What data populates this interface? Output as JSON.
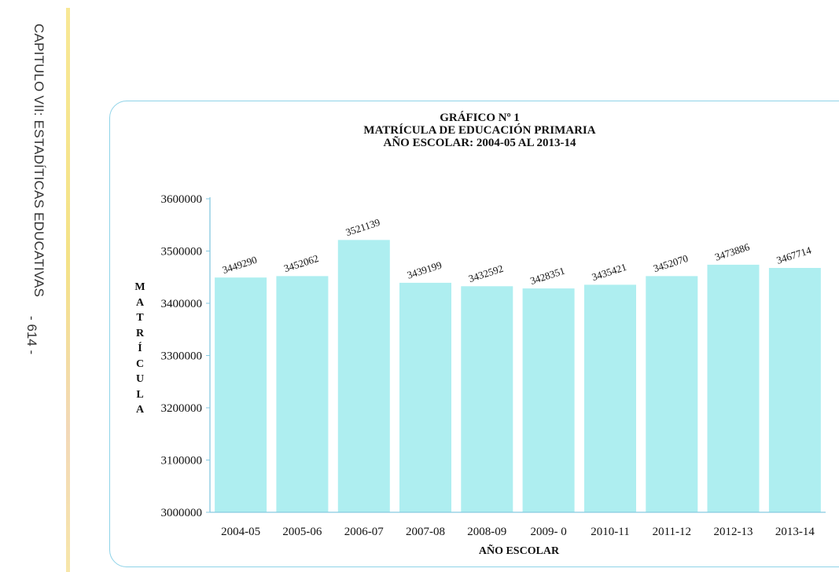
{
  "page": {
    "chapter": "CAPITULO VII: ESTADÍTICAS EDUCATIVAS",
    "page_number": "- 614 -"
  },
  "chart_data": {
    "type": "bar",
    "title_lines": [
      "GRÁFICO Nº 1",
      "MATRÍCULA DE EDUCACIÓN PRIMARIA",
      "AÑO ESCOLAR: 2004-05  AL  2013-14"
    ],
    "xlabel": "AÑO  ESCOLAR",
    "ylabel": "MATRÍCULA",
    "ylabel_letters": [
      "M",
      "A",
      "T",
      "R",
      "Í",
      "C",
      "U",
      "L",
      "A"
    ],
    "categories": [
      "2004-05",
      "2005-06",
      "2006-07",
      "2007-08",
      "2008-09",
      "2009- 0",
      "2010-11",
      "2011-12",
      "2012-13",
      "2013-14"
    ],
    "values": [
      3449290,
      3452062,
      3521139,
      3439199,
      3432592,
      3428351,
      3435421,
      3452070,
      3473886,
      3467714
    ],
    "ylim": [
      3000000,
      3600000
    ],
    "yticks": [
      3000000,
      3100000,
      3200000,
      3300000,
      3400000,
      3500000,
      3600000
    ],
    "grid": false,
    "legend": "none",
    "bar_color": "#aeeef0",
    "axis_color": "#86c9e0"
  }
}
